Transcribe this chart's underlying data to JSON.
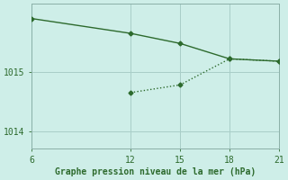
{
  "line1_x": [
    6,
    12,
    15,
    18,
    21
  ],
  "line1_y": [
    1015.9,
    1015.65,
    1015.48,
    1015.22,
    1015.18
  ],
  "line2_x": [
    12,
    15,
    18,
    21
  ],
  "line2_y": [
    1014.65,
    1014.78,
    1015.22,
    1015.18
  ],
  "color": "#2d6a2d",
  "bg_color": "#ceeee8",
  "xlabel": "Graphe pression niveau de la mer (hPa)",
  "xlim": [
    6,
    21
  ],
  "ylim": [
    1013.7,
    1016.15
  ],
  "xticks": [
    6,
    12,
    15,
    18,
    21
  ],
  "yticks": [
    1014,
    1015
  ],
  "grid_color": "#a8cec8",
  "marker": "D",
  "markersize": 2.5,
  "linewidth": 1.0
}
